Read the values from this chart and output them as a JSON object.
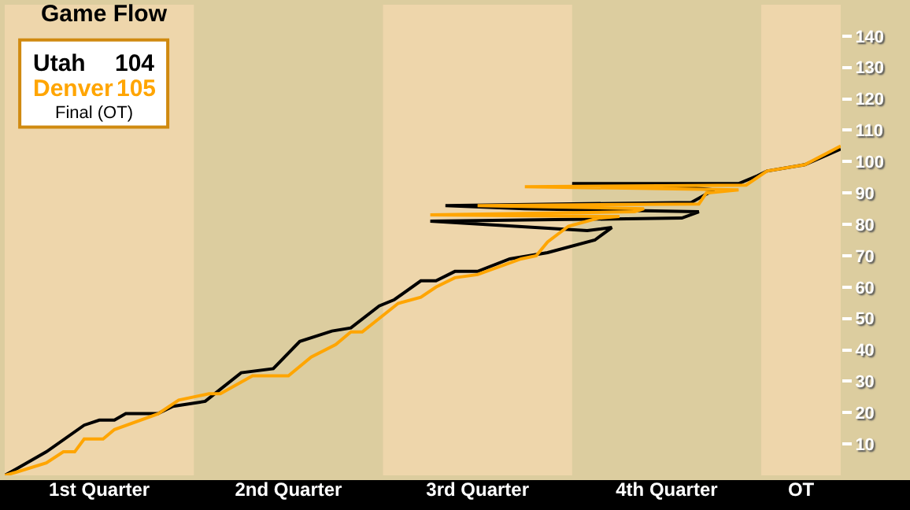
{
  "chart_data": {
    "type": "line",
    "title": "Game Flow",
    "annotations": [
      "104",
      "105",
      "Final (OT)"
    ],
    "xlim": [
      0.5,
      4.92
    ],
    "xticks": [
      {
        "value": 1,
        "label": "1st Quarter"
      },
      {
        "value": 2,
        "label": "2nd Quarter"
      },
      {
        "value": 3,
        "label": "3rd Quarter"
      },
      {
        "value": 4,
        "label": "4th Quarter"
      },
      {
        "value": 4.71,
        "label": "OT"
      }
    ],
    "ylim": [
      0,
      150
    ],
    "yticks": [
      10,
      20,
      30,
      40,
      50,
      60,
      70,
      80,
      90,
      100,
      110,
      120,
      130,
      140
    ],
    "bands": [
      {
        "axis": "x",
        "from": 1.5,
        "to": 2.5,
        "color": "#dccd9f"
      },
      {
        "axis": "x",
        "from": 3.5,
        "to": 4.5,
        "color": "#dccd9f"
      }
    ],
    "grid": false,
    "legend": false,
    "marker": "none",
    "line_style": "solid",
    "series": [
      {
        "name": "Utah",
        "color": "#000000",
        "x": [
          0.5,
          0.56,
          0.72,
          0.92,
          1,
          1.08,
          1.14,
          1.31,
          1.39,
          1.56,
          1.75,
          1.92,
          2.06,
          2.23,
          2.33,
          2.48,
          2.56,
          2.7,
          2.78,
          2.88,
          3,
          3.17,
          3.37,
          3.62,
          3.71,
          3.58,
          2.75,
          4.08,
          4.17,
          3.25,
          2.83,
          4.13,
          4.25,
          4.08,
          3.5,
          4.38,
          4.48,
          4.53,
          4.73,
          4.92
        ],
        "values": [
          0,
          2,
          7.5,
          16,
          17.6,
          17.6,
          19.7,
          19.7,
          22,
          23.6,
          32.7,
          34,
          42.7,
          46,
          47,
          54,
          56,
          62,
          62,
          65,
          65,
          69,
          71,
          75,
          79,
          78,
          81,
          82,
          84,
          85,
          86,
          87,
          91,
          92,
          93,
          93,
          95.5,
          97,
          99,
          104
        ]
      },
      {
        "name": "Denver",
        "color": "#ffa500",
        "x": [
          0.5,
          0.56,
          0.72,
          0.81,
          0.87,
          0.92,
          1.02,
          1.08,
          1.31,
          1.42,
          1.58,
          1.64,
          1.81,
          2,
          2.12,
          2.25,
          2.33,
          2.39,
          2.58,
          2.7,
          2.78,
          2.88,
          3,
          3.23,
          3.31,
          3.37,
          3.48,
          3.64,
          3.75,
          2.75,
          3.83,
          3.88,
          3,
          4.17,
          4.21,
          4.38,
          3.25,
          4.42,
          4.53,
          4.73,
          4.92
        ],
        "values": [
          0,
          1,
          4,
          7.5,
          7.5,
          11.6,
          11.6,
          14.6,
          19.6,
          24,
          26,
          26,
          31.7,
          31.7,
          37.7,
          41.7,
          45.7,
          45.7,
          54.8,
          56.8,
          60,
          63,
          64,
          69,
          70,
          74.4,
          79.4,
          82,
          82.5,
          83,
          84,
          85,
          86,
          86.5,
          90,
          91,
          92,
          92.5,
          97,
          99,
          105
        ]
      }
    ]
  }
}
